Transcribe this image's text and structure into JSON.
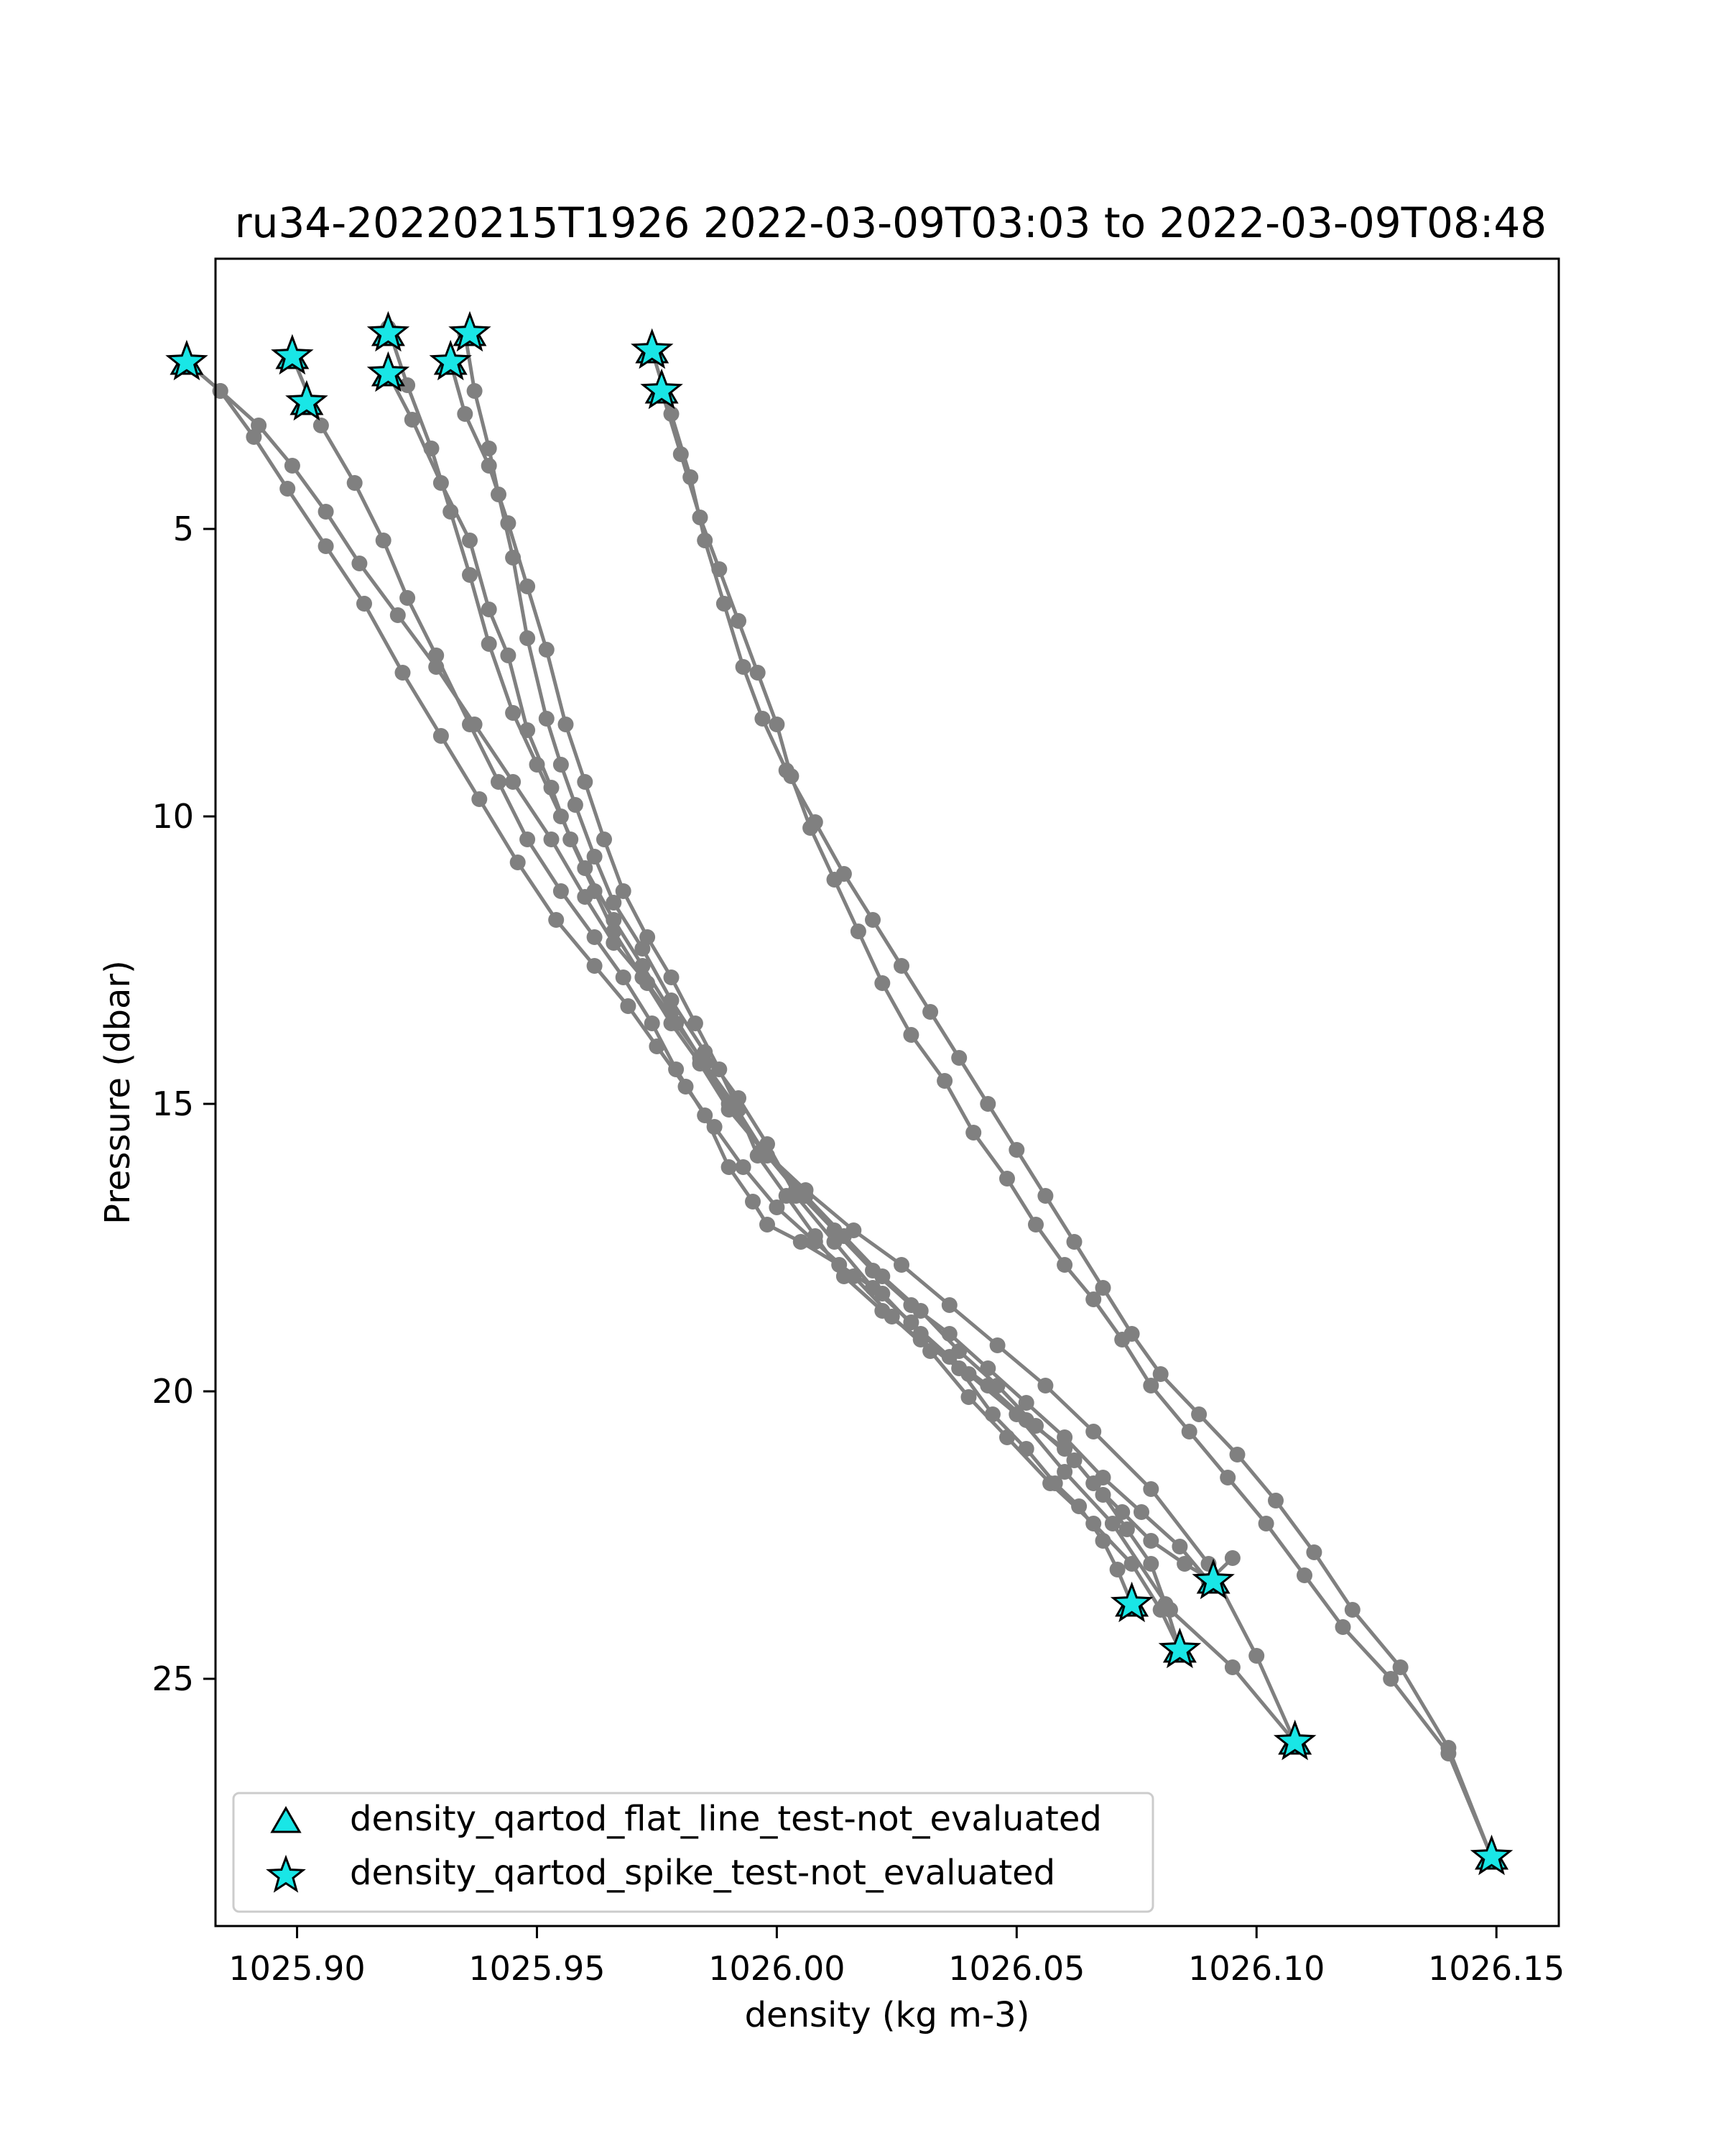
{
  "chart_data": {
    "type": "scatter",
    "title": "ru34-20220215T1926 2022-03-09T03:03 to 2022-03-09T08:48",
    "xlabel": "density (kg m-3)",
    "ylabel": "Pressure (dbar)",
    "xlim": [
      1025.883,
      1026.163
    ],
    "ylim": [
      29.3,
      0.3
    ],
    "y_inverted": true,
    "grid": false,
    "legend_position": "lower-left",
    "xticks": [
      1025.9,
      1025.95,
      1026.0,
      1026.05,
      1026.1,
      1026.15
    ],
    "xtick_labels": [
      "1025.90",
      "1025.95",
      "1026.00",
      "1026.05",
      "1026.10",
      "1026.15"
    ],
    "yticks": [
      5,
      10,
      15,
      20,
      25
    ],
    "ytick_labels": [
      "5",
      "10",
      "15",
      "20",
      "25"
    ],
    "colors": {
      "profile_line": "#808080",
      "marker_fill": "#19e6e6",
      "marker_edge": "#000000",
      "axes": "#000000"
    },
    "profiles": [
      {
        "x": [
          1025.935,
          1025.937,
          1025.94,
          1025.942,
          1025.945,
          1025.948,
          1025.952,
          1025.955,
          1025.958,
          1025.962,
          1025.966,
          1025.972,
          1025.978,
          1025.985,
          1025.992,
          1025.998,
          1026.004,
          1026.012,
          1026.02,
          1026.028,
          1026.036,
          1026.044,
          1026.052,
          1026.06,
          1026.066,
          1026.072,
          1026.078,
          1026.085,
          1026.091
        ],
        "y": [
          1.6,
          2.6,
          3.6,
          4.4,
          5.5,
          6.9,
          8.3,
          9.1,
          9.8,
          10.7,
          11.5,
          12.3,
          13.2,
          14.1,
          14.9,
          15.7,
          16.6,
          17.4,
          18.2,
          18.8,
          19.4,
          19.9,
          20.5,
          21.0,
          21.6,
          22.1,
          22.6,
          23.0,
          23.3
        ]
      },
      {
        "x": [
          1025.932,
          1025.935,
          1025.94,
          1025.944,
          1025.948,
          1025.952,
          1025.956,
          1025.96,
          1025.964,
          1025.968,
          1025.973,
          1025.978,
          1025.983,
          1025.988,
          1025.992,
          1025.996,
          1026.002,
          1026.008,
          1026.014,
          1026.022,
          1026.03,
          1026.038,
          1026.045,
          1026.052,
          1026.058,
          1026.063,
          1026.068,
          1026.071,
          1026.074
        ],
        "y": [
          2.1,
          3.0,
          3.9,
          4.9,
          6.0,
          7.1,
          8.4,
          9.4,
          10.4,
          11.3,
          12.1,
          12.8,
          13.6,
          14.4,
          15.1,
          15.9,
          16.6,
          17.3,
          18.0,
          18.6,
          19.1,
          19.6,
          20.4,
          21.0,
          21.6,
          22.0,
          22.6,
          23.1,
          23.7
        ]
      },
      {
        "x": [
          1025.919,
          1025.924,
          1025.93,
          1025.936,
          1025.94,
          1025.944,
          1025.948,
          1025.953,
          1025.957,
          1025.962,
          1025.966,
          1025.972,
          1025.978,
          1025.984,
          1025.99,
          1025.998,
          1026.006,
          1026.014,
          1026.022,
          1026.03,
          1026.038,
          1026.046,
          1026.054,
          1026.062,
          1026.068,
          1026.073,
          1026.078,
          1026.081,
          1026.084
        ],
        "y": [
          2.3,
          3.1,
          4.2,
          5.2,
          6.4,
          7.2,
          8.5,
          9.5,
          10.4,
          11.3,
          12.0,
          12.8,
          13.6,
          14.3,
          15.1,
          15.9,
          16.6,
          17.3,
          18.0,
          18.6,
          19.3,
          19.9,
          20.6,
          21.2,
          21.8,
          22.4,
          23.0,
          23.7,
          24.5
        ]
      },
      {
        "x": [
          1025.919,
          1025.923,
          1025.928,
          1025.932,
          1025.936,
          1025.94,
          1025.945,
          1025.95,
          1025.955,
          1025.96,
          1025.966,
          1025.972,
          1025.978,
          1025.984,
          1025.99,
          1025.997,
          1026.004,
          1026.012,
          1026.02,
          1026.028,
          1026.036,
          1026.044,
          1026.052,
          1026.06,
          1026.068,
          1026.076,
          1026.084,
          1026.09,
          1026.095
        ],
        "y": [
          1.5,
          2.5,
          3.6,
          4.7,
          5.8,
          7.0,
          8.2,
          9.1,
          10.0,
          10.9,
          11.8,
          12.6,
          13.4,
          14.2,
          15.0,
          15.8,
          16.5,
          17.2,
          17.9,
          18.5,
          19.0,
          19.6,
          20.2,
          20.8,
          21.5,
          22.1,
          22.7,
          23.3,
          22.9
        ]
      },
      {
        "x": [
          1025.899,
          1025.905,
          1025.912,
          1025.918,
          1025.923,
          1025.929,
          1025.936,
          1025.942,
          1025.948,
          1025.955,
          1025.962,
          1025.968,
          1025.974,
          1025.979,
          1025.985,
          1025.99,
          1025.995,
          1025.998,
          1026.005,
          1026.013,
          1026.022,
          1026.03,
          1026.04,
          1026.05,
          1026.06,
          1026.07,
          1026.082,
          1026.095,
          1026.108
        ],
        "y": [
          2.0,
          3.2,
          4.2,
          5.2,
          6.2,
          7.2,
          8.4,
          9.4,
          10.4,
          11.3,
          12.1,
          12.8,
          13.6,
          14.4,
          15.2,
          16.1,
          16.7,
          17.1,
          17.4,
          17.8,
          18.3,
          19.0,
          19.7,
          20.4,
          21.4,
          22.3,
          23.8,
          24.8,
          26.1
        ]
      },
      {
        "x": [
          1025.877,
          1025.884,
          1025.892,
          1025.899,
          1025.906,
          1025.913,
          1025.921,
          1025.929,
          1025.937,
          1025.945,
          1025.953,
          1025.96,
          1025.966,
          1025.973,
          1025.979,
          1025.985,
          1025.991,
          1025.997,
          1026.006,
          1026.016,
          1026.026,
          1026.036,
          1026.046,
          1026.056,
          1026.066,
          1026.078,
          1026.09,
          1026.1,
          1026.108
        ],
        "y": [
          2.1,
          2.6,
          3.2,
          3.9,
          4.7,
          5.6,
          6.5,
          7.4,
          8.4,
          9.4,
          10.4,
          11.4,
          12.2,
          12.9,
          13.6,
          14.3,
          15.0,
          15.8,
          16.5,
          17.2,
          17.8,
          18.5,
          19.2,
          19.9,
          20.7,
          21.7,
          23.0,
          24.6,
          26.1
        ]
      },
      {
        "x": [
          1025.877,
          1025.884,
          1025.891,
          1025.898,
          1025.906,
          1025.914,
          1025.922,
          1025.93,
          1025.938,
          1025.946,
          1025.954,
          1025.962,
          1025.969,
          1025.975,
          1025.981,
          1025.987,
          1025.993,
          1026.0,
          1026.008,
          1026.016,
          1026.024,
          1026.032,
          1026.04,
          1026.048,
          1026.057,
          1026.066,
          1026.074,
          1026.08,
          1026.084
        ],
        "y": [
          2.1,
          2.6,
          3.4,
          4.3,
          5.3,
          6.3,
          7.5,
          8.6,
          9.7,
          10.8,
          11.8,
          12.6,
          13.3,
          14.0,
          14.7,
          15.4,
          16.1,
          16.8,
          17.4,
          18.0,
          18.7,
          19.3,
          20.1,
          20.8,
          21.6,
          22.3,
          23.0,
          23.8,
          24.5
        ]
      },
      {
        "x": [
          1025.974,
          1025.978,
          1025.982,
          1025.985,
          1025.989,
          1025.993,
          1025.997,
          1026.002,
          1026.008,
          1026.014,
          1026.02,
          1026.026,
          1026.032,
          1026.038,
          1026.044,
          1026.05,
          1026.056,
          1026.062,
          1026.068,
          1026.074,
          1026.08,
          1026.088,
          1026.096,
          1026.104,
          1026.112,
          1026.12,
          1026.13,
          1026.14,
          1026.149
        ],
        "y": [
          1.9,
          3.0,
          4.1,
          5.2,
          6.3,
          7.4,
          8.3,
          9.2,
          10.1,
          11.0,
          11.8,
          12.6,
          13.4,
          14.2,
          15.0,
          15.8,
          16.6,
          17.4,
          18.2,
          19.0,
          19.7,
          20.4,
          21.1,
          21.9,
          22.8,
          23.8,
          24.8,
          26.2,
          28.1
        ]
      },
      {
        "x": [
          1025.976,
          1025.98,
          1025.984,
          1025.988,
          1025.992,
          1025.996,
          1026.0,
          1026.003,
          1026.007,
          1026.012,
          1026.017,
          1026.022,
          1026.028,
          1026.035,
          1026.041,
          1026.048,
          1026.054,
          1026.06,
          1026.066,
          1026.072,
          1026.078,
          1026.086,
          1026.094,
          1026.102,
          1026.11,
          1026.118,
          1026.128,
          1026.14,
          1026.149
        ],
        "y": [
          2.6,
          3.7,
          4.8,
          5.7,
          6.6,
          7.5,
          8.4,
          9.3,
          10.2,
          11.1,
          12.0,
          12.9,
          13.8,
          14.6,
          15.5,
          16.3,
          17.1,
          17.8,
          18.4,
          19.1,
          19.9,
          20.7,
          21.5,
          22.3,
          23.2,
          24.1,
          25.0,
          26.3,
          28.1
        ]
      }
    ],
    "flagged_points": {
      "x": [
        1025.877,
        1025.899,
        1025.902,
        1025.919,
        1025.919,
        1025.932,
        1025.936,
        1025.974,
        1025.976,
        1026.074,
        1026.084,
        1026.091,
        1026.108,
        1026.149
      ],
      "y": [
        2.1,
        2.0,
        2.8,
        1.6,
        2.3,
        2.1,
        1.6,
        1.9,
        2.6,
        23.7,
        24.5,
        23.3,
        26.1,
        28.1
      ]
    },
    "series": [
      {
        "name": "density_qartod_flat_line_test-not_evaluated",
        "marker": "triangle",
        "points": "flagged_points"
      },
      {
        "name": "density_qartod_spike_test-not_evaluated",
        "marker": "star",
        "points": "flagged_points"
      }
    ]
  }
}
